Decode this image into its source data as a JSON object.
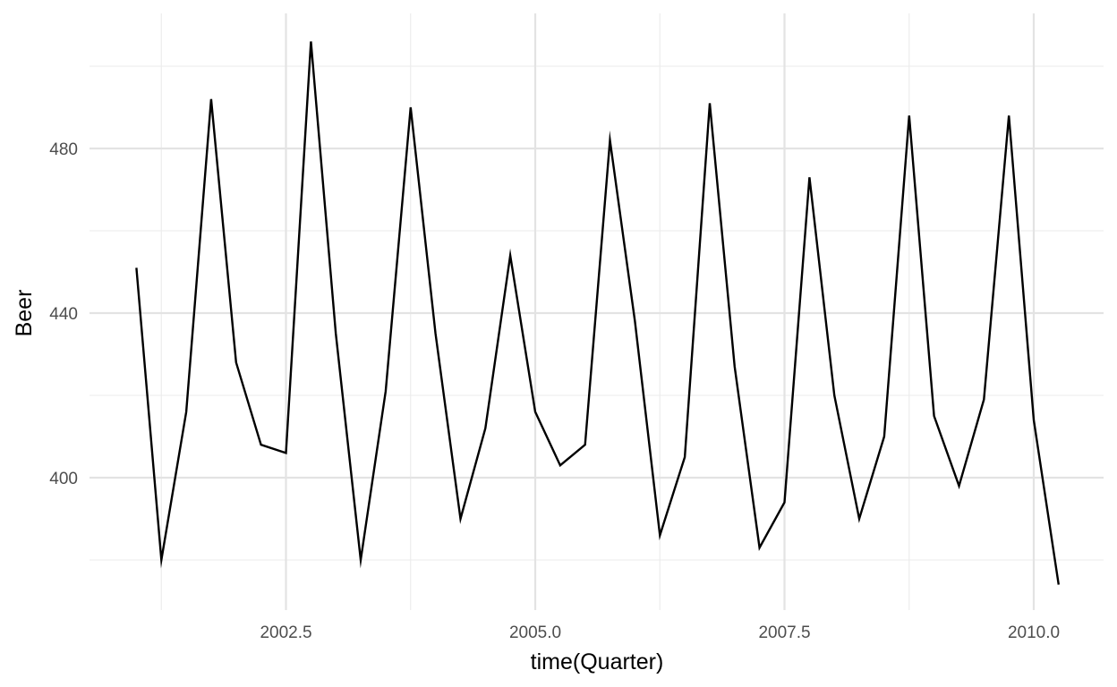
{
  "chart_data": {
    "type": "line",
    "xlabel": "time(Quarter)",
    "ylabel": "Beer",
    "xlim": [
      2000.83,
      2010.5
    ],
    "ylim": [
      368,
      512
    ],
    "grid": true,
    "x_ticks": [
      {
        "value": 2002.5,
        "label": "2002.5"
      },
      {
        "value": 2005.0,
        "label": "2005.0"
      },
      {
        "value": 2007.5,
        "label": "2007.5"
      },
      {
        "value": 2010.0,
        "label": "2010.0"
      }
    ],
    "y_ticks": [
      {
        "value": 400,
        "label": "400"
      },
      {
        "value": 440,
        "label": "440"
      },
      {
        "value": 480,
        "label": "480"
      }
    ],
    "series": [
      {
        "color": "#000000",
        "x": [
          2001.0,
          2001.25,
          2001.5,
          2001.75,
          2002.0,
          2002.25,
          2002.5,
          2002.75,
          2003.0,
          2003.25,
          2003.5,
          2003.75,
          2004.0,
          2004.25,
          2004.5,
          2004.75,
          2005.0,
          2005.25,
          2005.5,
          2005.75,
          2006.0,
          2006.25,
          2006.5,
          2006.75,
          2007.0,
          2007.25,
          2007.5,
          2007.75,
          2008.0,
          2008.25,
          2008.5,
          2008.75,
          2009.0,
          2009.25,
          2009.5,
          2009.75,
          2010.0,
          2010.25
        ],
        "values": [
          451,
          380,
          416,
          492,
          428,
          408,
          406,
          506,
          435,
          380,
          421,
          490,
          435,
          390,
          412,
          454,
          416,
          403,
          408,
          482,
          438,
          386,
          405,
          491,
          427,
          383,
          394,
          473,
          420,
          390,
          410,
          488,
          415,
          398,
          419,
          488,
          414,
          374
        ]
      }
    ]
  }
}
